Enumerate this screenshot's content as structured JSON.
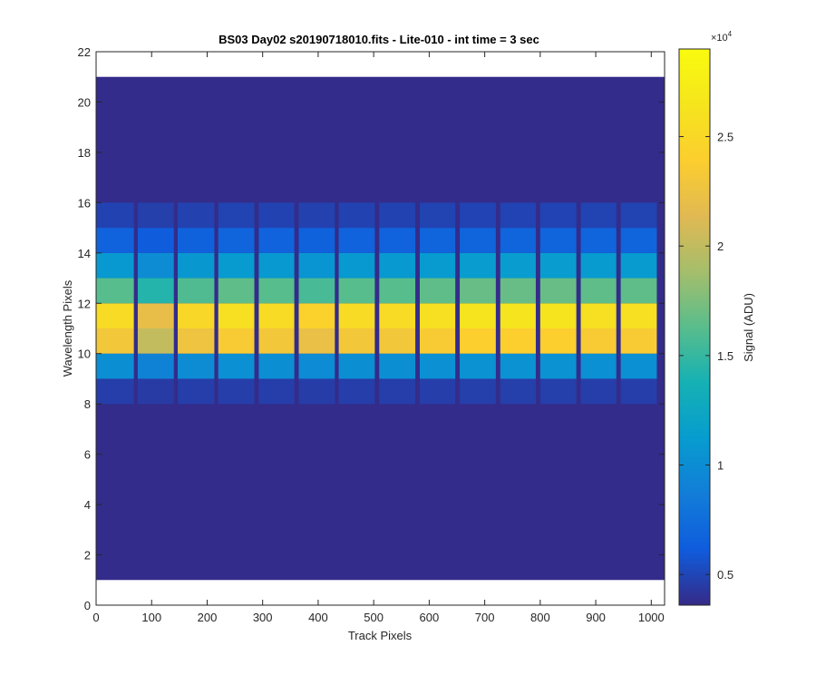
{
  "chart_data": {
    "type": "heatmap",
    "title": "BS03 Day02  s20190718010.fits - Lite-010 - int time = 3 sec",
    "xlabel": "Track Pixels",
    "ylabel": "Wavelength Pixels",
    "xlim": [
      0,
      1024
    ],
    "ylim": [
      0,
      22
    ],
    "x_ticks": [
      0,
      100,
      200,
      300,
      400,
      500,
      600,
      700,
      800,
      900,
      1000
    ],
    "y_ticks": [
      0,
      2,
      4,
      6,
      8,
      10,
      12,
      14,
      16,
      18,
      20,
      22
    ],
    "image_extent": {
      "x": [
        0,
        1024
      ],
      "y": [
        1,
        21
      ]
    },
    "background_value": 3700,
    "colormap": "parula",
    "colorbar": {
      "label": "Signal (ADU)",
      "exponent_label": "×10",
      "exponent": "4",
      "range": [
        3600,
        29000
      ],
      "ticks": [
        5000,
        10000,
        15000,
        20000,
        25000
      ],
      "tick_labels": [
        "0.5",
        "1",
        "1.5",
        "2",
        "2.5"
      ]
    },
    "fibers": [
      {
        "x_start": 0,
        "x_end": 68,
        "peak": 26500
      },
      {
        "x_start": 75,
        "x_end": 140,
        "peak": 23000
      },
      {
        "x_start": 147,
        "x_end": 213,
        "peak": 26000
      },
      {
        "x_start": 220,
        "x_end": 285,
        "peak": 27000
      },
      {
        "x_start": 293,
        "x_end": 357,
        "peak": 26500
      },
      {
        "x_start": 365,
        "x_end": 430,
        "peak": 25500
      },
      {
        "x_start": 437,
        "x_end": 502,
        "peak": 26500
      },
      {
        "x_start": 510,
        "x_end": 575,
        "peak": 26500
      },
      {
        "x_start": 583,
        "x_end": 647,
        "peak": 27000
      },
      {
        "x_start": 655,
        "x_end": 720,
        "peak": 27500
      },
      {
        "x_start": 728,
        "x_end": 792,
        "peak": 27500
      },
      {
        "x_start": 800,
        "x_end": 865,
        "peak": 27500
      },
      {
        "x_start": 873,
        "x_end": 937,
        "peak": 27000
      },
      {
        "x_start": 945,
        "x_end": 1010,
        "peak": 27000
      }
    ],
    "row_profile": [
      {
        "y0": 8,
        "y1": 9,
        "frac": 0.04
      },
      {
        "y0": 9,
        "y1": 10,
        "frac": 0.28
      },
      {
        "y0": 10,
        "y1": 11,
        "frac": 0.85
      },
      {
        "y0": 11,
        "y1": 12,
        "frac": 0.95
      },
      {
        "y0": 12,
        "y1": 13,
        "frac": 0.55
      },
      {
        "y0": 13,
        "y1": 14,
        "frac": 0.32
      },
      {
        "y0": 14,
        "y1": 15,
        "frac": 0.13
      },
      {
        "y0": 15,
        "y1": 16,
        "frac": 0.05
      }
    ],
    "grid": false
  }
}
